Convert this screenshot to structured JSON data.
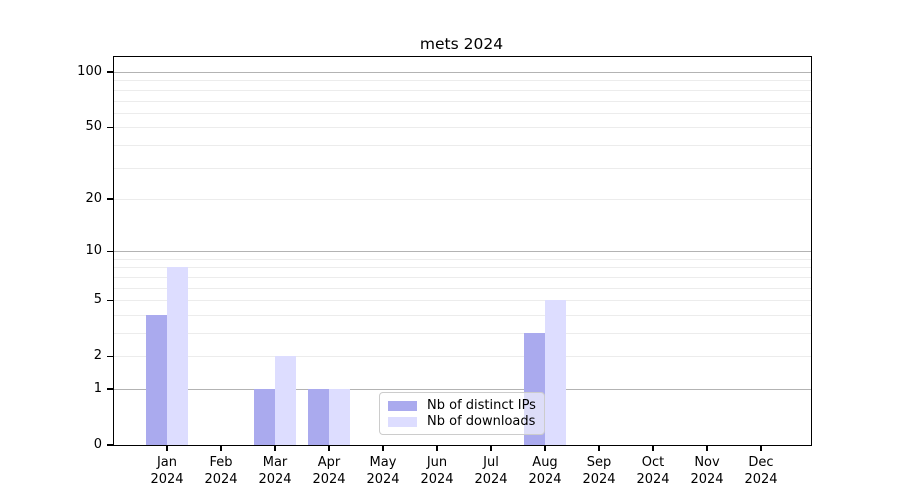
{
  "title": "mets 2024",
  "chart_data": {
    "type": "bar",
    "title": "mets 2024",
    "categories": [
      "Jan 2024",
      "Feb 2024",
      "Mar 2024",
      "Apr 2024",
      "May 2024",
      "Jun 2024",
      "Jul 2024",
      "Aug 2024",
      "Sep 2024",
      "Oct 2024",
      "Nov 2024",
      "Dec 2024"
    ],
    "series": [
      {
        "name": "Nb of distinct IPs",
        "color": "#aaaaee",
        "values": [
          4,
          0,
          1,
          1,
          0,
          0,
          0,
          3,
          0,
          0,
          0,
          0
        ]
      },
      {
        "name": "Nb of downloads",
        "color": "#ddddff",
        "values": [
          8,
          0,
          2,
          1,
          0,
          0,
          0,
          5,
          0,
          0,
          0,
          0
        ]
      }
    ],
    "xlabel": "",
    "ylabel": "",
    "y_axis": {
      "scale": "log1p",
      "ylim": [
        0,
        121
      ],
      "tick_values": [
        0,
        1,
        2,
        5,
        10,
        20,
        50,
        100
      ],
      "tick_labels": [
        "0",
        "1",
        "2",
        "5",
        "10",
        "20",
        "50",
        "100"
      ],
      "major_grid_values": [
        1,
        10,
        100
      ],
      "minor_grid_values": [
        2,
        3,
        4,
        5,
        6,
        7,
        8,
        9,
        20,
        30,
        40,
        50,
        60,
        70,
        80,
        90
      ]
    },
    "grid": true,
    "legend": {
      "position": "lower-center-inside",
      "entries": [
        "Nb of distinct IPs",
        "Nb of downloads"
      ]
    },
    "colors": {
      "bar_distinct_ips": "#aaaaee",
      "bar_downloads": "#ddddff",
      "major_grid": "#b3b3b3",
      "minor_grid": "#ececec",
      "axis": "#000000",
      "text": "#000000",
      "legend_border": "#cccccc"
    }
  }
}
